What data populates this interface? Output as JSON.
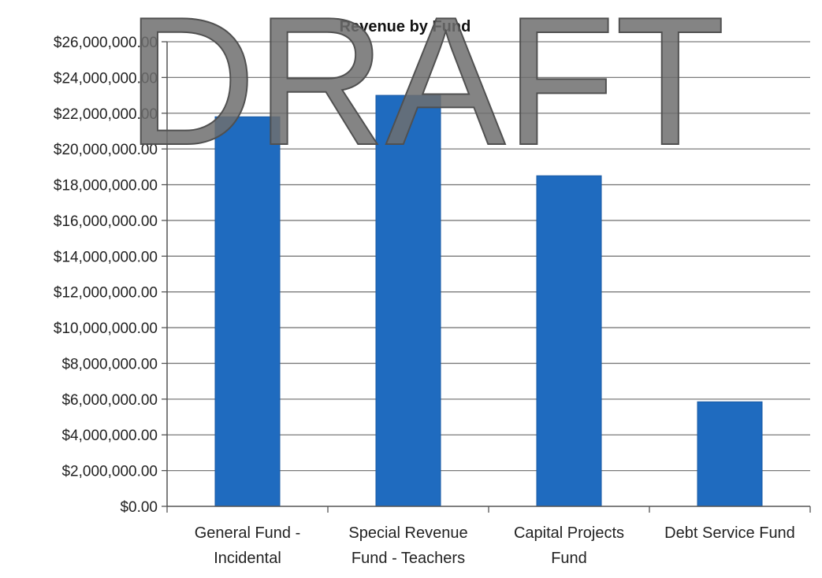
{
  "watermark": "DRAFT",
  "colors": {
    "bar": "#1f6bbf",
    "bar_edge": "#1a5aa3",
    "grid": "#7a7a7a",
    "axis": "#555555"
  },
  "chart_data": {
    "type": "bar",
    "title": "Revenue by Fund",
    "categories": [
      [
        "General Fund -",
        "Incidental"
      ],
      [
        "Special Revenue",
        "Fund - Teachers"
      ],
      [
        "Capital Projects",
        "Fund"
      ],
      [
        "Debt Service Fund"
      ]
    ],
    "values": [
      21800000,
      23000000,
      18500000,
      5850000
    ],
    "ylim": [
      0,
      26000000
    ],
    "yticks": [
      0,
      2000000,
      4000000,
      6000000,
      8000000,
      10000000,
      12000000,
      14000000,
      16000000,
      18000000,
      20000000,
      22000000,
      24000000,
      26000000
    ],
    "ytick_labels": [
      "$0.00",
      "$2,000,000.00",
      "$4,000,000.00",
      "$6,000,000.00",
      "$8,000,000.00",
      "$10,000,000.00",
      "$12,000,000.00",
      "$14,000,000.00",
      "$16,000,000.00",
      "$18,000,000.00",
      "$20,000,000.00",
      "$22,000,000.00",
      "$24,000,000.00",
      "$26,000,000.00"
    ],
    "xlabel": "",
    "ylabel": "",
    "grid": true,
    "legend": "none"
  }
}
